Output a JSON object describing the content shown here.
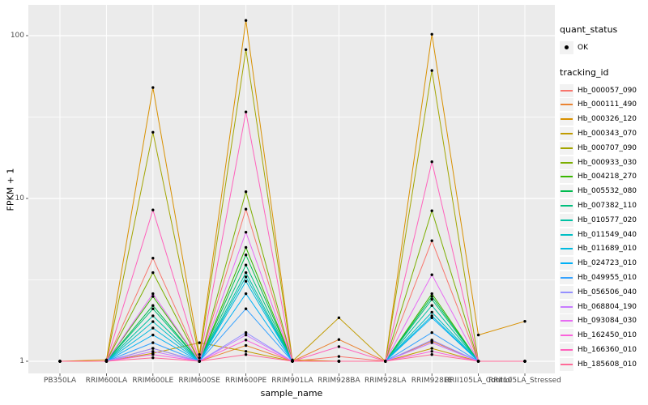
{
  "figure": {
    "panel_bg": "#EBEBEB",
    "grid_color": "#FFFFFF",
    "axis_text_color": "#4D4D4D",
    "tick_color": "#333333",
    "point_color": "#000000",
    "legend_key_bg": "#F2F2F2"
  },
  "axes": {
    "x_title": "sample_name",
    "y_title": "FPKM + 1",
    "y_tick_labels": [
      "100",
      "10",
      "1"
    ]
  },
  "legend": {
    "quant_status_title": "quant_status",
    "ok_label": "OK",
    "tracking_id_title": "tracking_id"
  },
  "chart_data": {
    "type": "line",
    "title": "",
    "xlabel": "sample_name",
    "ylabel": "FPKM + 1",
    "y_scale": "log10",
    "ylim": [
      1,
      150
    ],
    "y_ticks": [
      1,
      10,
      100
    ],
    "y_minor_ticks": [
      3.162,
      31.623
    ],
    "grid": true,
    "legend_position": "right",
    "quant_status": "OK",
    "categories": [
      "PB350LA",
      "RRIM600LA",
      "RRIM600LE",
      "RRIM600SE",
      "RRIM600PE",
      "RRIM901LA",
      "RRIM928BA",
      "RRIM928LA",
      "RRIM928LE",
      "RRII105LA_Control",
      "RRII105LA_Stressed"
    ],
    "series": [
      {
        "name": "Hb_000057_090",
        "color": "#F8766D",
        "values": [
          1,
          1,
          4.3,
          1,
          8.6,
          1,
          1.07,
          1,
          5.5,
          1,
          1
        ]
      },
      {
        "name": "Hb_000111_490",
        "color": "#EA8331",
        "values": [
          1,
          1,
          1.2,
          1,
          1.25,
          1,
          1.36,
          1,
          1.33,
          1,
          1
        ]
      },
      {
        "name": "Hb_000326_120",
        "color": "#D89000",
        "values": [
          1,
          1.02,
          48,
          1.1,
          124,
          1.02,
          1,
          1,
          102,
          1.45,
          1.76
        ]
      },
      {
        "name": "Hb_000343_070",
        "color": "#C09B00",
        "values": [
          1,
          1,
          1.12,
          1.3,
          1.15,
          1,
          1.85,
          1,
          1.2,
          1,
          1
        ]
      },
      {
        "name": "Hb_000707_090",
        "color": "#A3A500",
        "values": [
          1,
          1,
          25.5,
          1.05,
          82,
          1,
          1,
          1,
          61,
          1,
          1
        ]
      },
      {
        "name": "Hb_000933_030",
        "color": "#7CAE00",
        "values": [
          1,
          1,
          3.5,
          1,
          11,
          1,
          1,
          1,
          8.4,
          1,
          1
        ]
      },
      {
        "name": "Hb_004218_270",
        "color": "#39B600",
        "values": [
          1,
          1,
          2.5,
          1,
          5.0,
          1,
          1,
          1,
          2.6,
          1,
          1
        ]
      },
      {
        "name": "Hb_005532_080",
        "color": "#00BB4E",
        "values": [
          1,
          1,
          2.2,
          1,
          4.5,
          1,
          1,
          1,
          2.5,
          1,
          1
        ]
      },
      {
        "name": "Hb_007382_110",
        "color": "#00BF7D",
        "values": [
          1,
          1,
          2.1,
          1,
          3.9,
          1,
          1,
          1,
          2.4,
          1,
          1
        ]
      },
      {
        "name": "Hb_010577_020",
        "color": "#00C1A3",
        "values": [
          1,
          1,
          1.9,
          1,
          3.5,
          1,
          1,
          1,
          2.2,
          1,
          1
        ]
      },
      {
        "name": "Hb_011549_040",
        "color": "#00BFC4",
        "values": [
          1,
          1,
          1.75,
          1,
          3.3,
          1,
          1,
          1,
          2.0,
          1,
          1
        ]
      },
      {
        "name": "Hb_011689_010",
        "color": "#00BAE0",
        "values": [
          1,
          1,
          1.6,
          1,
          3.1,
          1,
          1,
          1,
          1.9,
          1,
          1
        ]
      },
      {
        "name": "Hb_024723_010",
        "color": "#00B0F6",
        "values": [
          1,
          1,
          1.45,
          1,
          2.6,
          1,
          1,
          1,
          1.85,
          1,
          1
        ]
      },
      {
        "name": "Hb_049955_010",
        "color": "#35A2FF",
        "values": [
          1,
          1,
          1.3,
          1,
          2.1,
          1,
          1,
          1,
          1.5,
          1,
          1
        ]
      },
      {
        "name": "Hb_056506_040",
        "color": "#9590FF",
        "values": [
          1,
          1,
          1.2,
          1,
          1.5,
          1,
          1,
          1,
          1.35,
          1,
          1
        ]
      },
      {
        "name": "Hb_068804_190",
        "color": "#C77CFF",
        "values": [
          1,
          1,
          1.15,
          1,
          1.45,
          1,
          1,
          1,
          1.3,
          1,
          1
        ]
      },
      {
        "name": "Hb_093084_030",
        "color": "#E76BF3",
        "values": [
          1,
          1,
          2.6,
          1,
          6.2,
          1,
          1,
          1,
          3.4,
          1,
          1
        ]
      },
      {
        "name": "Hb_162450_010",
        "color": "#FA62DB",
        "values": [
          1,
          1,
          1.1,
          1,
          1.35,
          1,
          1,
          1,
          1.15,
          1,
          1
        ]
      },
      {
        "name": "Hb_166360_010",
        "color": "#FF62BC",
        "values": [
          1,
          1,
          8.5,
          1,
          34,
          1,
          1.23,
          1,
          16.8,
          1,
          1
        ]
      },
      {
        "name": "Hb_185608_010",
        "color": "#FF6A98",
        "values": [
          1,
          1,
          1.05,
          1,
          1.1,
          1,
          1,
          1,
          1.1,
          1,
          1
        ]
      }
    ]
  }
}
